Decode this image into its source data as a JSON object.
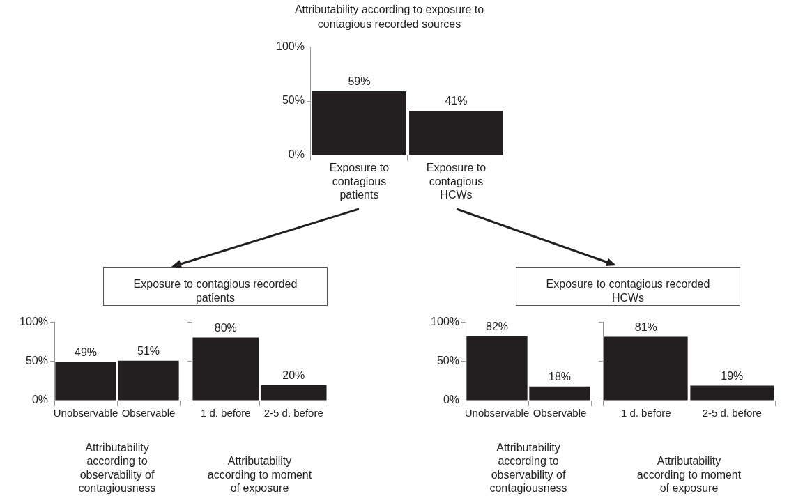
{
  "chart_data": [
    {
      "type": "bar",
      "title": "Attributability according to exposure to contagious recorded sources",
      "categories": [
        "Exposure to contagious patients",
        "Exposure to contagious HCWs"
      ],
      "values": [
        59,
        41
      ],
      "value_labels": [
        "59%",
        "41%"
      ],
      "color": "#231f20",
      "ylim": [
        0,
        100
      ],
      "yticks": [
        {
          "value": 0,
          "label": "0%"
        },
        {
          "value": 50,
          "label": "50%"
        },
        {
          "value": 100,
          "label": "100%"
        }
      ]
    },
    {
      "type": "bar",
      "title": "Exposure to contagious recorded patients",
      "xlabel": "Attributability according to observability of contagiousness",
      "categories": [
        "Unobservable",
        "Observable"
      ],
      "values": [
        49,
        51
      ],
      "value_labels": [
        "49%",
        "51%"
      ],
      "color": "#231f20",
      "ylim": [
        0,
        100
      ],
      "yticks": [
        {
          "value": 0,
          "label": "0%"
        },
        {
          "value": 50,
          "label": "50%"
        },
        {
          "value": 100,
          "label": "100%"
        }
      ]
    },
    {
      "type": "bar",
      "xlabel": "Attributability according to moment of exposure",
      "categories": [
        "1 d. before",
        "2-5 d. before"
      ],
      "values": [
        80,
        20
      ],
      "value_labels": [
        "80%",
        "20%"
      ],
      "color": "#231f20",
      "ylim": [
        0,
        100
      ],
      "yticks": [
        {
          "value": 0,
          "label": null
        },
        {
          "value": 50,
          "label": null
        },
        {
          "value": 100,
          "label": null
        }
      ],
      "tick_labels": "x"
    },
    {
      "type": "bar",
      "title": "Exposure to contagious recorded HCWs",
      "xlabel": "Attributability according to observability of contagiousness",
      "categories": [
        "Unobservable",
        "Observable"
      ],
      "values": [
        82,
        18
      ],
      "value_labels": [
        "82%",
        "18%"
      ],
      "color": "#231f20",
      "ylim": [
        0,
        100
      ],
      "yticks": [
        {
          "value": 0,
          "label": "0%"
        },
        {
          "value": 50,
          "label": "50%"
        },
        {
          "value": 100,
          "label": "100%"
        }
      ]
    },
    {
      "type": "bar",
      "xlabel": "Attributability according to moment of exposure",
      "categories": [
        "1 d. before",
        "2-5 d. before"
      ],
      "values": [
        81,
        19
      ],
      "value_labels": [
        "81%",
        "19%"
      ],
      "color": "#231f20",
      "ylim": [
        0,
        100
      ],
      "yticks": [
        {
          "value": 0,
          "label": null
        },
        {
          "value": 50,
          "label": null
        },
        {
          "value": 100,
          "label": null
        }
      ],
      "tick_labels": "x"
    }
  ]
}
